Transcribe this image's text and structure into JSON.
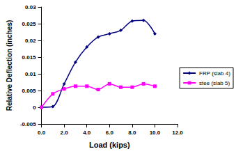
{
  "chart_data": {
    "type": "line",
    "x_label": "Load (kips)",
    "y_label": "Relative Deflection (inches)",
    "x": [
      0,
      1,
      2,
      3,
      4,
      5,
      6,
      7,
      8,
      9,
      10
    ],
    "series": [
      {
        "name": "FRP (slab 4)",
        "color": "#000080",
        "marker": "diamond",
        "line_style": "solid",
        "values": [
          0,
          0.0002,
          0.007,
          0.0135,
          0.018,
          0.021,
          0.022,
          0.023,
          0.0258,
          0.026,
          0.022
        ]
      },
      {
        "name": "stee (slab 5)",
        "color": "#ff00ff",
        "marker": "square",
        "line_style": "solid",
        "values": [
          0,
          0.004,
          0.0055,
          0.0063,
          0.0063,
          0.0053,
          0.007,
          0.006,
          0.006,
          0.007,
          0.0063
        ]
      }
    ],
    "xlim": [
      0,
      12
    ],
    "xticks": [
      {
        "value": 0,
        "label": "0.0"
      },
      {
        "value": 2,
        "label": "2.0"
      },
      {
        "value": 4,
        "label": "4.0"
      },
      {
        "value": 6,
        "label": "6.0"
      },
      {
        "value": 8,
        "label": "8.0"
      },
      {
        "value": 10,
        "label": "10.0"
      },
      {
        "value": 12,
        "label": "12.0"
      }
    ],
    "ylim": [
      -0.005,
      0.03
    ],
    "yticks": [
      -0.005,
      0,
      0.005,
      0.01,
      0.015,
      0.02,
      0.025,
      0.03
    ],
    "grid": false,
    "legend": "right"
  }
}
